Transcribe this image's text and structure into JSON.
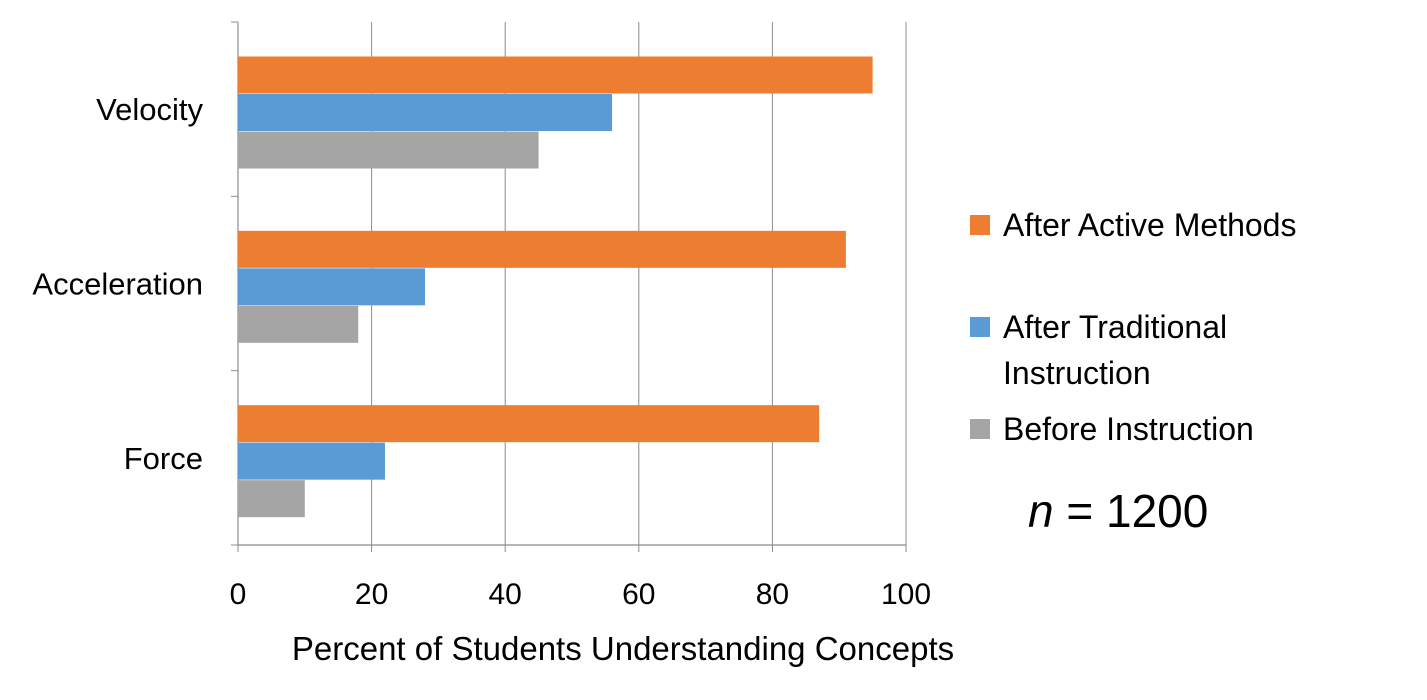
{
  "chart_data": {
    "type": "bar",
    "orientation": "horizontal",
    "categories": [
      "Velocity",
      "Acceleration",
      "Force"
    ],
    "series": [
      {
        "name": "After Active Methods",
        "color": "#ED7D31",
        "values": [
          95,
          91,
          87
        ]
      },
      {
        "name": "After Traditional Instruction",
        "color": "#5B9BD5",
        "values": [
          56,
          28,
          22
        ]
      },
      {
        "name": "Before Instruction",
        "color": "#A5A5A5",
        "values": [
          45,
          18,
          10
        ]
      }
    ],
    "xlabel": "Percent of Students Understanding Concepts",
    "ylabel": "",
    "xlim": [
      0,
      100
    ],
    "xticks": [
      0,
      20,
      40,
      60,
      80,
      100
    ],
    "xtick_labels": [
      "0",
      "20",
      "40",
      "60",
      "80",
      "100"
    ],
    "grid": true,
    "legend_position": "right",
    "annotation": {
      "variable": "n",
      "text": " = 1200"
    }
  }
}
